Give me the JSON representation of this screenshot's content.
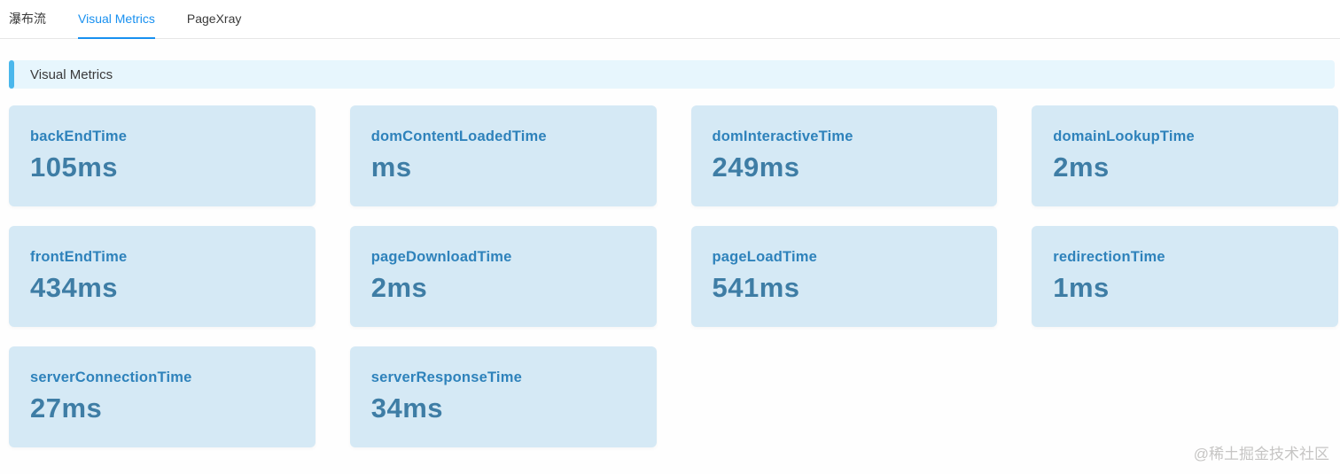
{
  "tabs": [
    {
      "label": "瀑布流",
      "active": false
    },
    {
      "label": "Visual Metrics",
      "active": true
    },
    {
      "label": "PageXray",
      "active": false
    }
  ],
  "section": {
    "title": "Visual Metrics"
  },
  "metrics": [
    {
      "name": "backEndTime",
      "value": "105ms"
    },
    {
      "name": "domContentLoadedTime",
      "value": "ms"
    },
    {
      "name": "domInteractiveTime",
      "value": "249ms"
    },
    {
      "name": "domainLookupTime",
      "value": "2ms"
    },
    {
      "name": "frontEndTime",
      "value": "434ms"
    },
    {
      "name": "pageDownloadTime",
      "value": "2ms"
    },
    {
      "name": "pageLoadTime",
      "value": "541ms"
    },
    {
      "name": "redirectionTime",
      "value": "1ms"
    },
    {
      "name": "serverConnectionTime",
      "value": "27ms"
    },
    {
      "name": "serverResponseTime",
      "value": "34ms"
    }
  ],
  "watermark": "@稀土掘金技术社区",
  "colors": {
    "accent_blue": "#1890f0",
    "header_bg": "#e7f6fd",
    "header_accent": "#4ab7ec",
    "card_bg": "#d5e9f5",
    "label_color": "#2e82bb",
    "value_color": "#3e7da5",
    "watermark": "#c6c5c4"
  }
}
